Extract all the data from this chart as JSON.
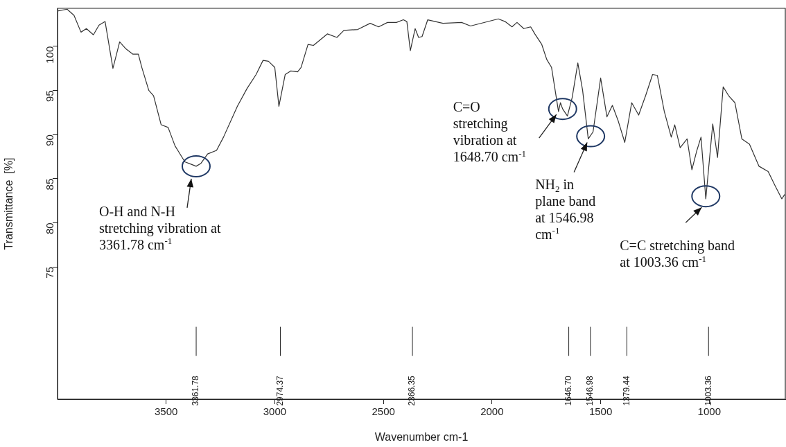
{
  "chart_data": {
    "type": "line",
    "xlabel": "Wavenumber cm-1",
    "ylabel": "Transmittance  [%]",
    "xlim": [
      4000,
      650
    ],
    "ylim": [
      60,
      104.3
    ],
    "xticks": [
      3500,
      3000,
      2500,
      2000,
      1500,
      1000
    ],
    "yticks": [
      75,
      80,
      85,
      90,
      95,
      100
    ],
    "grid": false,
    "series": [
      {
        "color": "#333333",
        "x": [
          4000,
          3956,
          3924,
          3892,
          3867,
          3835,
          3809,
          3781,
          3745,
          3714,
          3685,
          3653,
          3628,
          3612,
          3580,
          3558,
          3523,
          3491,
          3459,
          3414,
          3382,
          3362,
          3341,
          3309,
          3268,
          3236,
          3172,
          3128,
          3086,
          3054,
          3029,
          3000,
          2981,
          2952,
          2927,
          2895,
          2879,
          2847,
          2822,
          2758,
          2714,
          2682,
          2618,
          2561,
          2522,
          2481,
          2440,
          2408,
          2392,
          2376,
          2354,
          2338,
          2322,
          2296,
          2226,
          2140,
          2099,
          1971,
          1940,
          1908,
          1885,
          1854,
          1822,
          1803,
          1771,
          1748,
          1726,
          1694,
          1685,
          1675,
          1653,
          1631,
          1605,
          1583,
          1557,
          1535,
          1500,
          1471,
          1446,
          1420,
          1389,
          1357,
          1325,
          1293,
          1261,
          1239,
          1207,
          1175,
          1159,
          1134,
          1102,
          1080,
          1057,
          1038,
          1016,
          984,
          962,
          936,
          911,
          882,
          850,
          815,
          771,
          729,
          697,
          666,
          653
        ],
        "values": [
          104.0,
          104.2,
          103.5,
          101.6,
          102.0,
          101.3,
          102.4,
          102.8,
          97.5,
          100.5,
          99.7,
          99.1,
          99.1,
          97.6,
          95.0,
          94.4,
          91.1,
          90.8,
          88.7,
          86.9,
          86.6,
          86.4,
          86.7,
          87.8,
          88.2,
          89.7,
          93.2,
          95.2,
          96.8,
          98.4,
          98.3,
          97.6,
          93.2,
          96.8,
          97.2,
          97.1,
          97.6,
          100.2,
          100.1,
          101.4,
          101.0,
          101.8,
          101.9,
          102.6,
          102.2,
          102.7,
          102.7,
          103.0,
          102.8,
          99.5,
          102.0,
          101.0,
          101.1,
          103.0,
          102.6,
          102.7,
          102.3,
          103.1,
          102.8,
          102.2,
          102.7,
          102.0,
          102.2,
          101.4,
          100.2,
          98.5,
          97.6,
          92.6,
          93.6,
          92.9,
          92.1,
          94.2,
          98.1,
          95.0,
          89.5,
          90.3,
          96.4,
          92.0,
          93.3,
          91.6,
          89.1,
          93.6,
          92.2,
          94.4,
          96.8,
          96.7,
          92.6,
          89.7,
          91.1,
          88.5,
          89.5,
          86.0,
          88.2,
          89.7,
          82.7,
          91.2,
          87.4,
          95.4,
          94.4,
          93.6,
          89.5,
          88.9,
          86.4,
          85.8,
          84.2,
          82.7,
          83.2
        ]
      },
      {
        "type": "line",
        "color": "#222222",
        "x": [
          3361.78,
          3361.78
        ],
        "values": [
          64.9,
          68.2
        ]
      },
      {
        "type": "line",
        "color": "#222222",
        "x": [
          2974.37,
          2974.37
        ],
        "values": [
          64.9,
          68.2
        ]
      },
      {
        "type": "line",
        "color": "#222222",
        "x": [
          2366.35,
          2366.35
        ],
        "values": [
          64.9,
          68.2
        ]
      },
      {
        "type": "line",
        "color": "#222222",
        "x": [
          1646.7,
          1646.7
        ],
        "values": [
          64.9,
          68.2
        ]
      },
      {
        "type": "line",
        "color": "#222222",
        "x": [
          1546.98,
          1546.98
        ],
        "values": [
          64.9,
          68.2
        ]
      },
      {
        "type": "line",
        "color": "#222222",
        "x": [
          1379.44,
          1379.44
        ],
        "values": [
          64.9,
          68.2
        ]
      },
      {
        "type": "line",
        "color": "#222222",
        "x": [
          1003.36,
          1003.36
        ],
        "values": [
          64.9,
          68.2
        ]
      }
    ],
    "annotations": [
      {
        "text": "O-H and N-H\nstretching vibration at\n3361.78 cm$^{-1}$",
        "x": 3362,
        "y": 86.4
      },
      {
        "text": "C=O\nstretching\nvibration at\n1648.70 cm$^{-1}$",
        "x": 1675,
        "y": 92.9
      },
      {
        "text": "NH$_{2}$ in\nplane band\nat 1546.98\ncm$^{-1}$",
        "x": 1546,
        "y": 89.8
      },
      {
        "text": "C=C stretching band\nat 1003.36 cm$^{-1}$",
        "x": 1016,
        "y": 83.0
      },
      {
        "text": "3361.78",
        "x": 3361.78,
        "y": 64.9
      },
      {
        "text": "2974.37",
        "x": 2974.37,
        "y": 64.9
      },
      {
        "text": "2366.35",
        "x": 2366.35,
        "y": 64.9
      },
      {
        "text": "1646.70",
        "x": 1646.7,
        "y": 64.9
      },
      {
        "text": "1546.98",
        "x": 1546.98,
        "y": 64.9
      },
      {
        "text": "1379.44",
        "x": 1379.44,
        "y": 64.9
      },
      {
        "text": "1003.36",
        "x": 1003.36,
        "y": 64.9
      }
    ]
  }
}
